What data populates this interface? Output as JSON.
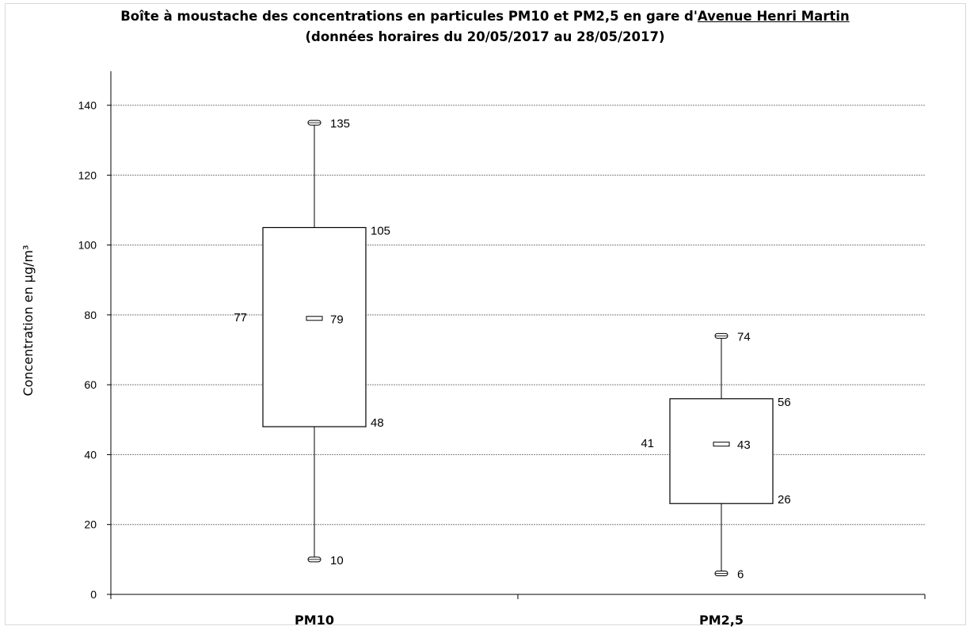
{
  "chart_data": {
    "type": "boxplot",
    "title_line1_prefix": "Boîte à moustache des concentrations en particules PM10 et PM2,5 en gare d'",
    "title_line1_station": "Avenue Henri Martin",
    "title_line2": "(données horaires du 20/05/2017 au 28/05/2017)",
    "ylabel": "Concentration en µg/m³",
    "xlabel": "",
    "ylim": [
      0,
      140
    ],
    "ytick_step": 20,
    "grid": true,
    "legend": "none",
    "categories": [
      "PM10",
      "PM2,5"
    ],
    "series": [
      {
        "category": "PM10",
        "min": 10,
        "q1": 48,
        "median": 77,
        "mean": 79,
        "q3": 105,
        "max": 135
      },
      {
        "category": "PM2,5",
        "min": 6,
        "q1": 26,
        "median": 41,
        "mean": 43,
        "q3": 56,
        "max": 74
      }
    ],
    "colors": {
      "line": "#000000",
      "grid": "#7f7f7f",
      "box_fill": "#ffffff"
    }
  }
}
